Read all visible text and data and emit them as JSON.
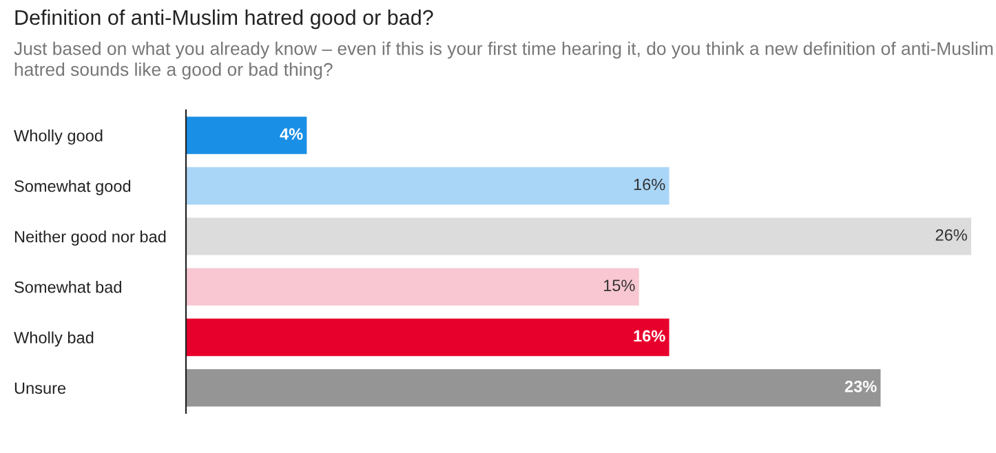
{
  "chart_data": {
    "type": "bar",
    "orientation": "horizontal",
    "title": "Definition of anti-Muslim hatred good or bad?",
    "subtitle": "Just based on what you already know – even if this is your first time hearing it, do you think a new definition of anti-Muslim hatred sounds like a good or bad thing?",
    "categories": [
      "Wholly good",
      "Somewhat good",
      "Neither good nor bad",
      "Somewhat bad",
      "Wholly bad",
      "Unsure"
    ],
    "values": [
      4,
      16,
      26,
      15,
      16,
      23
    ],
    "colors": [
      "#1a8fe6",
      "#a9d5f7",
      "#dcdcdc",
      "#f8c7d1",
      "#e8002d",
      "#959595"
    ],
    "value_labels": [
      "4%",
      "16%",
      "26%",
      "15%",
      "16%",
      "23%"
    ],
    "xlim": [
      0,
      26
    ],
    "tick_labels": "y",
    "grid": false,
    "legend": false
  }
}
